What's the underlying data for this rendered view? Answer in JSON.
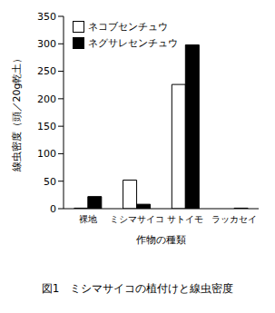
{
  "chart_data": {
    "type": "bar",
    "title": "図1　ミシマサイコの植付けと線虫密度",
    "x_label": "作物の種類",
    "y_label": "線虫密度（頭／20g乾土）",
    "categories": [
      "裸地",
      "ミシマサイコ",
      "サトイモ",
      "ラッカセイ"
    ],
    "series": [
      {
        "name": "ネコブセンチュウ",
        "color": "#ffffff",
        "values": [
          1,
          52,
          226,
          0
        ]
      },
      {
        "name": "ネグサレセンチュウ",
        "color": "#000000",
        "values": [
          22,
          8,
          298,
          1
        ]
      }
    ],
    "ylim": [
      0,
      350
    ],
    "yticks": [
      0,
      50,
      100,
      150,
      200,
      250,
      300,
      350
    ],
    "grid": false,
    "legend": "upper left"
  }
}
